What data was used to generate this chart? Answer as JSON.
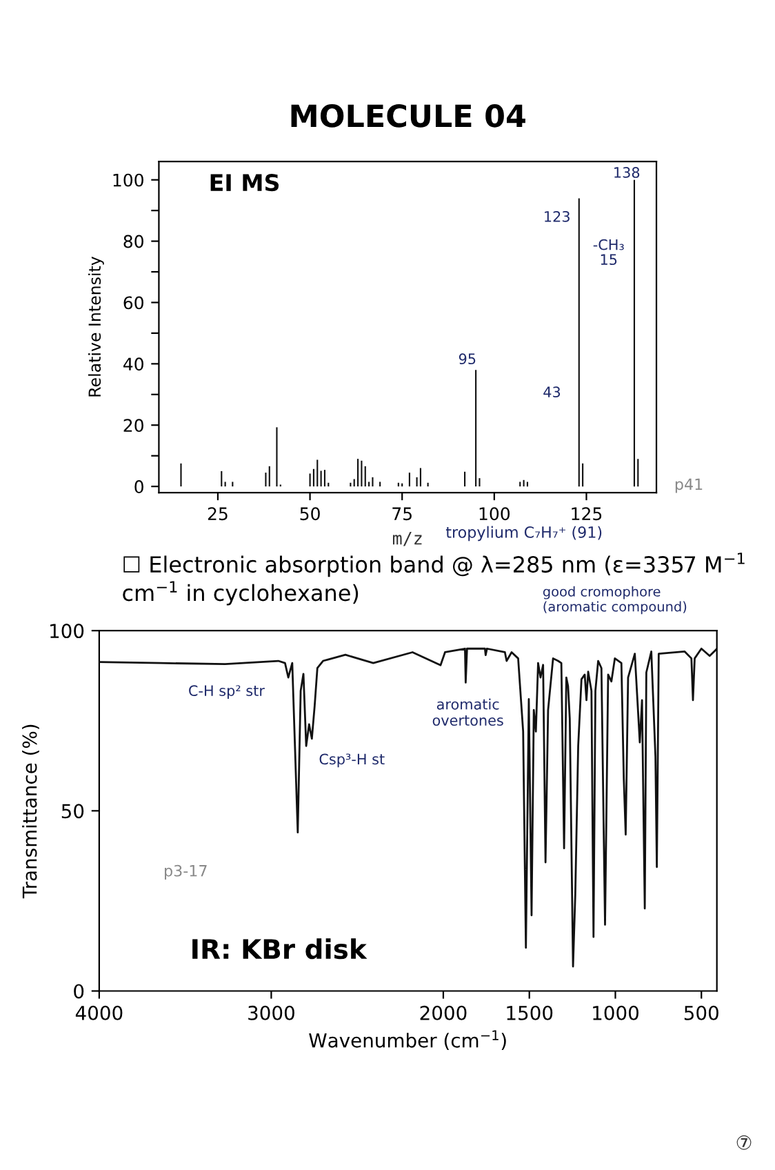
{
  "chart_data": [
    {
      "type": "bar",
      "title": "MOLECULE 04",
      "xlabel": "m/z",
      "ylabel": "Relative Intensity",
      "color": "#111111",
      "x": [
        15,
        26,
        27,
        29,
        38,
        39,
        41,
        42,
        50,
        51,
        52,
        53,
        54,
        55,
        61,
        62,
        63,
        64,
        65,
        66,
        67,
        69,
        74,
        75,
        77,
        79,
        80,
        82,
        92,
        95,
        96,
        107,
        108,
        109,
        123,
        124,
        138,
        139
      ],
      "values": [
        7.5,
        5,
        1.5,
        1.5,
        4.5,
        6.6,
        19.3,
        0.6,
        4.2,
        5.7,
        8.7,
        5.1,
        5.4,
        1.2,
        1.2,
        2.4,
        9,
        8.4,
        6.6,
        1.5,
        3,
        1.5,
        1.2,
        1,
        4.5,
        3,
        6,
        1.2,
        4.8,
        38,
        2.7,
        1.5,
        2.1,
        1.5,
        94,
        7.5,
        100,
        9
      ],
      "xlim": [
        9,
        144
      ],
      "ylim": [
        -2,
        106
      ],
      "xticks": [
        25,
        50,
        75,
        100,
        125
      ],
      "yticks": [
        0,
        {
          "value": 10,
          "label": null
        },
        20,
        {
          "value": 30,
          "label": null
        },
        40,
        {
          "value": 50,
          "label": null
        },
        60,
        {
          "value": 70,
          "label": null
        },
        80,
        {
          "value": 90,
          "label": null
        },
        100
      ],
      "grid": false,
      "annotations": [
        "EI MS",
        "☐ Electronic absorption band @ λ=285 nm (ε=3357 M$^{−1}$ cm$^{−1}$ in cyclohexane)",
        "good cromophore\n(aromatic compound)",
        "p41",
        "tropylium C₇H₇⁺ (91)",
        "138",
        "123",
        "95",
        "-CH₃",
        "15",
        "43"
      ]
    },
    {
      "type": "line",
      "xlabel": "Wavenumber (cm$^{−1}$)",
      "ylabel": "Transmittance (%)",
      "color": "#111111",
      "x": [
        4000,
        3642,
        3268,
        2959,
        2920,
        2901,
        2878,
        2846,
        2829,
        2813,
        2797,
        2780,
        2764,
        2748,
        2732,
        2699,
        2667,
        2569,
        2407,
        2179,
        2016,
        1990,
        1874,
        1870,
        1862,
        1758,
        1754,
        1746,
        1642,
        1632,
        1603,
        1565,
        1536,
        1520,
        1503,
        1487,
        1474,
        1462,
        1449,
        1435,
        1420,
        1406,
        1391,
        1362,
        1333,
        1314,
        1298,
        1285,
        1275,
        1265,
        1246,
        1233,
        1216,
        1197,
        1178,
        1168,
        1158,
        1139,
        1127,
        1116,
        1100,
        1081,
        1060,
        1042,
        1023,
        1003,
        965,
        951,
        940,
        926,
        887,
        858,
        845,
        829,
        820,
        791,
        767,
        759,
        748,
        597,
        558,
        549,
        539,
        500,
        452,
        413
      ],
      "values": [
        91.3,
        91,
        90.7,
        91.6,
        91,
        87,
        91,
        44,
        83.3,
        88,
        68,
        74,
        70,
        79,
        89.6,
        91.6,
        92,
        93.3,
        91,
        94,
        90.4,
        94,
        95,
        85.6,
        95,
        95,
        93.2,
        95,
        94,
        91.6,
        94,
        92.3,
        72,
        12,
        81,
        21,
        78,
        72,
        91,
        87,
        90.5,
        35.7,
        78,
        92.3,
        91.6,
        91,
        39.6,
        87,
        84.6,
        75.6,
        6.8,
        26.7,
        68,
        86.5,
        87.8,
        80.7,
        88.6,
        83.3,
        15,
        83.3,
        91.6,
        89.6,
        18.4,
        87.8,
        85.9,
        92.3,
        91,
        58.9,
        43.4,
        87,
        93.6,
        69,
        80.7,
        22.9,
        88.4,
        94.2,
        65,
        34.4,
        93.6,
        94.2,
        92.3,
        80.7,
        92.3,
        95,
        93,
        94.8
      ],
      "xlim": [
        4000,
        410
      ],
      "ylim": [
        0,
        100
      ],
      "xticks": [
        4000,
        3000,
        2000,
        1500,
        1000,
        500
      ],
      "yticks": [
        0,
        50,
        100
      ],
      "grid": false,
      "annotations": [
        "⑦",
        "C-H sp² str",
        "Csp³-H st",
        "aromatic\novertones",
        "IR: KBr disk",
        "p3-17"
      ]
    }
  ]
}
